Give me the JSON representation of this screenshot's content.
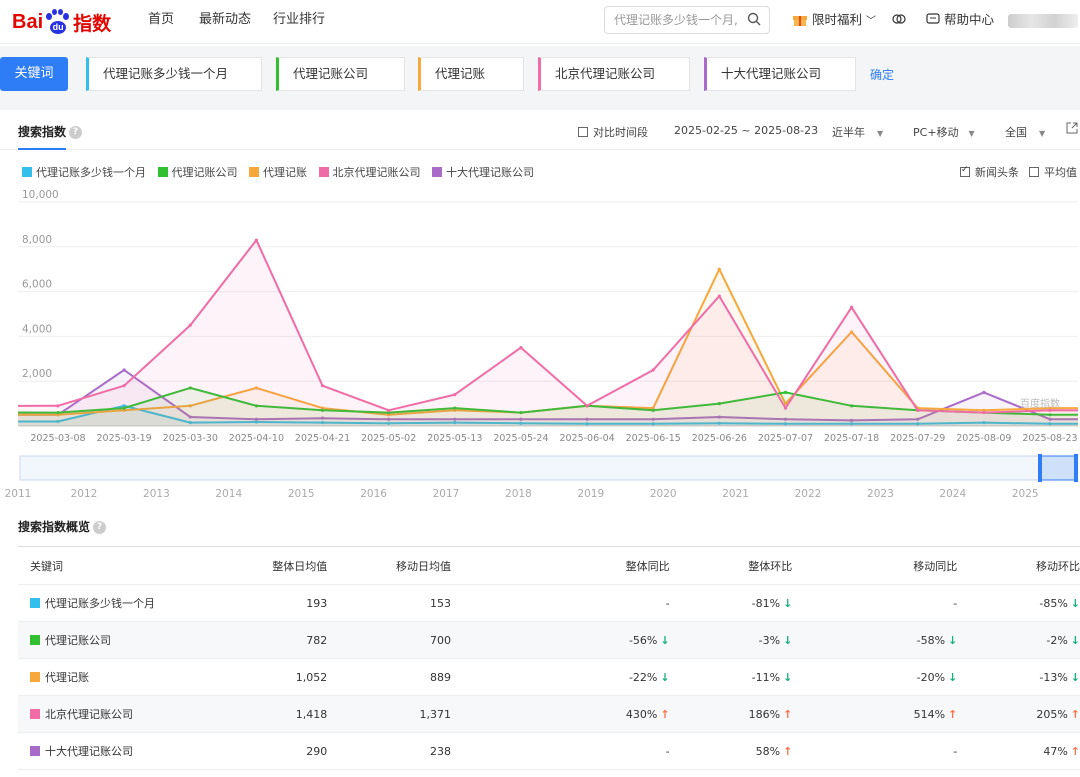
{
  "header": {
    "logo": "Bai du 指数",
    "nav": [
      "首页",
      "最新动态",
      "行业排行"
    ],
    "search_placeholder": "代理记账多少钱一个月,",
    "promo_label": "限时福利",
    "help_label": "帮助中心"
  },
  "keywords_bar": {
    "label": "关键词",
    "keywords": [
      {
        "text": "代理记账多少钱一个月",
        "color": "#33bfeb"
      },
      {
        "text": "代理记账公司",
        "color": "#32c032"
      },
      {
        "text": "代理记账",
        "color": "#f7a83a"
      },
      {
        "text": "北京代理记账公司",
        "color": "#f06ca6"
      },
      {
        "text": "十大代理记账公司",
        "color": "#a86cc8"
      }
    ],
    "confirm": "确定"
  },
  "search_index": {
    "title": "搜索指数",
    "compare_label": "对比时间段",
    "date_range": "2025-02-25 ~ 2025-08-23",
    "period": "近半年",
    "device": "PC+移动",
    "region": "全国",
    "news_label": "新闻头条",
    "avg_label": "平均值",
    "watermark": "百度指数"
  },
  "chart_data": {
    "type": "line",
    "ylim": [
      0,
      10000
    ],
    "yticks": [
      "10,000",
      "8,000",
      "6,000",
      "4,000",
      "2,000"
    ],
    "x": [
      "2025-03-08",
      "2025-03-19",
      "2025-03-30",
      "2025-04-10",
      "2025-04-21",
      "2025-05-02",
      "2025-05-13",
      "2025-05-24",
      "2025-06-04",
      "2025-06-15",
      "2025-06-26",
      "2025-07-07",
      "2025-07-18",
      "2025-07-29",
      "2025-08-09",
      "2025-08-23"
    ],
    "series": [
      {
        "name": "代理记账多少钱一个月",
        "color": "#33bfeb",
        "values": [
          200,
          900,
          150,
          180,
          150,
          120,
          150,
          120,
          100,
          100,
          120,
          100,
          100,
          100,
          150,
          100
        ]
      },
      {
        "name": "代理记账公司",
        "color": "#32c032",
        "values": [
          600,
          800,
          1700,
          900,
          700,
          600,
          800,
          600,
          900,
          700,
          1000,
          1500,
          900,
          700,
          600,
          500
        ]
      },
      {
        "name": "代理记账",
        "color": "#f7a83a",
        "values": [
          500,
          700,
          900,
          1700,
          800,
          500,
          700,
          600,
          900,
          800,
          7000,
          1000,
          4200,
          800,
          700,
          800
        ]
      },
      {
        "name": "北京代理记账公司",
        "color": "#f06ca6",
        "values": [
          900,
          1800,
          4500,
          8300,
          1800,
          700,
          1400,
          3500,
          900,
          2500,
          5800,
          800,
          5300,
          700,
          600,
          700
        ]
      },
      {
        "name": "十大代理记账公司",
        "color": "#a86cc8",
        "values": [
          500,
          2500,
          400,
          300,
          350,
          300,
          300,
          300,
          300,
          300,
          400,
          300,
          250,
          300,
          1500,
          300
        ]
      }
    ]
  },
  "timeline": {
    "years": [
      "2011",
      "2012",
      "2013",
      "2014",
      "2015",
      "2016",
      "2017",
      "2018",
      "2019",
      "2020",
      "2021",
      "2022",
      "2023",
      "2024",
      "2025"
    ]
  },
  "overview": {
    "title": "搜索指数概览",
    "columns": [
      "关键词",
      "整体日均值",
      "移动日均值",
      "整体同比",
      "整体环比",
      "移动同比",
      "移动环比"
    ],
    "rows": [
      {
        "keyword": "代理记账多少钱一个月",
        "color": "#33bfeb",
        "overall": "193",
        "mobile": "153",
        "yoy": "-",
        "yoy_dir": "",
        "mom": "-81%",
        "mom_dir": "down",
        "m_yoy": "-",
        "m_yoy_dir": "",
        "m_mom": "-85%",
        "m_mom_dir": "down"
      },
      {
        "keyword": "代理记账公司",
        "color": "#32c032",
        "overall": "782",
        "mobile": "700",
        "yoy": "-56%",
        "yoy_dir": "down",
        "mom": "-3%",
        "mom_dir": "down",
        "m_yoy": "-58%",
        "m_yoy_dir": "down",
        "m_mom": "-2%",
        "m_mom_dir": "down"
      },
      {
        "keyword": "代理记账",
        "color": "#f7a83a",
        "overall": "1,052",
        "mobile": "889",
        "yoy": "-22%",
        "yoy_dir": "down",
        "mom": "-11%",
        "mom_dir": "down",
        "m_yoy": "-20%",
        "m_yoy_dir": "down",
        "m_mom": "-13%",
        "m_mom_dir": "down"
      },
      {
        "keyword": "北京代理记账公司",
        "color": "#f06ca6",
        "overall": "1,418",
        "mobile": "1,371",
        "yoy": "430%",
        "yoy_dir": "up",
        "mom": "186%",
        "mom_dir": "up",
        "m_yoy": "514%",
        "m_yoy_dir": "up",
        "m_mom": "205%",
        "m_mom_dir": "up"
      },
      {
        "keyword": "十大代理记账公司",
        "color": "#a86cc8",
        "overall": "290",
        "mobile": "238",
        "yoy": "-",
        "yoy_dir": "",
        "mom": "58%",
        "mom_dir": "up",
        "m_yoy": "-",
        "m_yoy_dir": "",
        "m_mom": "47%",
        "m_mom_dir": "up"
      }
    ]
  }
}
